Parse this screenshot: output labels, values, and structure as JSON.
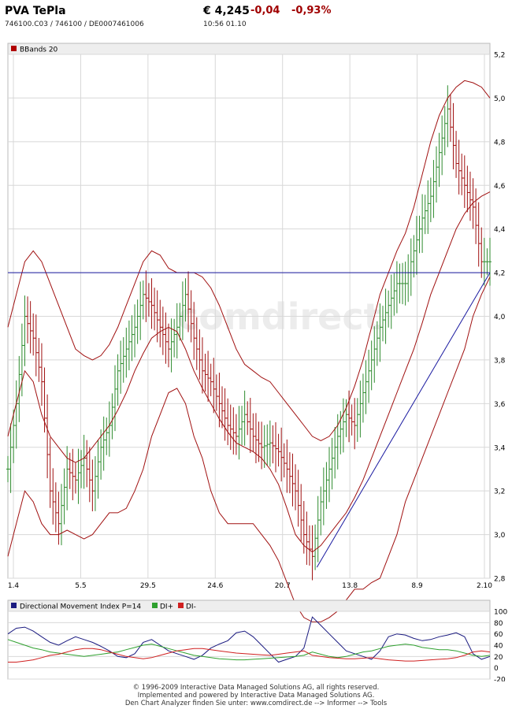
{
  "header": {
    "title": "PVA TePla",
    "ids": "746100.C03  /  746100  /  DE0007461006",
    "price": "€ 4,245",
    "change": "-0,04",
    "change_pct": "-0,93%",
    "time": "10:56   01.10"
  },
  "watermark": "comdirect",
  "colors": {
    "up_bar": "#2e8b2e",
    "down_bar": "#a01010",
    "bands": "#a01010",
    "trend": "#1a1aa0",
    "dmi": "#1a1a80",
    "di_plus": "#2ea02e",
    "di_minus": "#d02020",
    "grid": "#d8d8d8"
  },
  "chart_data": [
    {
      "type": "ohlc",
      "legend": "BBands 20",
      "x_tick_labels": [
        "1.4",
        "5.5",
        "29.5",
        "24.6",
        "20.7",
        "13.8",
        "8.9",
        "2.10"
      ],
      "y_ticks": [
        "2,8",
        "3,0",
        "3,2",
        "3,4",
        "3,6",
        "3,8",
        "4,0",
        "4,2",
        "4,4",
        "4,6",
        "4,8",
        "5,0",
        "5,2"
      ],
      "ylim": [
        2.8,
        5.2
      ],
      "horizontal_line": 4.2,
      "trend_line": {
        "from": [
          0.641,
          2.85
        ],
        "to": [
          1.0,
          4.2
        ]
      },
      "close": [
        3.3,
        3.6,
        4.0,
        3.9,
        3.7,
        3.2,
        3.05,
        3.3,
        3.25,
        3.35,
        3.2,
        3.4,
        3.5,
        3.75,
        3.85,
        3.95,
        4.1,
        4.05,
        3.95,
        3.85,
        3.95,
        4.1,
        3.9,
        3.75,
        3.7,
        3.6,
        3.5,
        3.45,
        3.55,
        3.45,
        3.4,
        3.42,
        3.38,
        3.3,
        3.2,
        3.0,
        2.9,
        3.15,
        3.3,
        3.45,
        3.55,
        3.5,
        3.65,
        3.8,
        3.95,
        4.05,
        4.15,
        4.15,
        4.3,
        4.45,
        4.55,
        4.75,
        4.95,
        4.7,
        4.6,
        4.5,
        4.25,
        4.25
      ],
      "bb_middle": [
        3.45,
        3.6,
        3.75,
        3.7,
        3.55,
        3.45,
        3.4,
        3.35,
        3.33,
        3.35,
        3.4,
        3.45,
        3.5,
        3.57,
        3.65,
        3.75,
        3.83,
        3.9,
        3.93,
        3.95,
        3.93,
        3.85,
        3.75,
        3.67,
        3.6,
        3.53,
        3.47,
        3.42,
        3.4,
        3.38,
        3.35,
        3.3,
        3.23,
        3.12,
        3.0,
        2.95,
        2.92,
        2.95,
        3.0,
        3.05,
        3.1,
        3.17,
        3.25,
        3.35,
        3.45,
        3.55,
        3.65,
        3.75,
        3.85,
        3.97,
        4.1,
        4.2,
        4.3,
        4.4,
        4.47,
        4.52,
        4.55,
        4.57
      ],
      "bb_upper": [
        3.95,
        4.1,
        4.25,
        4.3,
        4.25,
        4.15,
        4.05,
        3.95,
        3.85,
        3.82,
        3.8,
        3.82,
        3.87,
        3.95,
        4.05,
        4.15,
        4.25,
        4.3,
        4.28,
        4.22,
        4.2,
        4.2,
        4.2,
        4.18,
        4.13,
        4.05,
        3.95,
        3.85,
        3.78,
        3.75,
        3.72,
        3.7,
        3.65,
        3.6,
        3.55,
        3.5,
        3.45,
        3.43,
        3.45,
        3.5,
        3.58,
        3.68,
        3.8,
        3.95,
        4.1,
        4.2,
        4.3,
        4.38,
        4.5,
        4.65,
        4.8,
        4.92,
        5.0,
        5.05,
        5.08,
        5.07,
        5.05,
        5.0
      ],
      "bb_lower": [
        2.9,
        3.05,
        3.2,
        3.15,
        3.05,
        3.0,
        3.0,
        3.02,
        3.0,
        2.98,
        3.0,
        3.05,
        3.1,
        3.1,
        3.12,
        3.2,
        3.3,
        3.45,
        3.55,
        3.65,
        3.67,
        3.6,
        3.45,
        3.35,
        3.2,
        3.1,
        3.05,
        3.05,
        3.05,
        3.05,
        3.0,
        2.95,
        2.88,
        2.78,
        2.68,
        2.62,
        2.6,
        2.6,
        2.62,
        2.65,
        2.7,
        2.75,
        2.75,
        2.78,
        2.8,
        2.9,
        3.0,
        3.15,
        3.25,
        3.35,
        3.45,
        3.55,
        3.65,
        3.75,
        3.85,
        4.0,
        4.1,
        4.18
      ]
    },
    {
      "type": "line",
      "legend": [
        "Directional Movement Index P=14",
        "DI+",
        "DI-"
      ],
      "y_ticks": [
        "100",
        "80",
        "60",
        "40",
        "20",
        "0",
        "-20"
      ],
      "ylim": [
        -20,
        100
      ],
      "series": [
        {
          "name": "Directional Movement Index P=14",
          "values": [
            60,
            70,
            72,
            65,
            55,
            45,
            40,
            48,
            55,
            50,
            45,
            38,
            30,
            20,
            18,
            25,
            45,
            50,
            40,
            30,
            25,
            20,
            15,
            22,
            35,
            42,
            48,
            62,
            65,
            55,
            40,
            25,
            10,
            15,
            20,
            35,
            90,
            75,
            60,
            45,
            30,
            25,
            20,
            15,
            30,
            55,
            60,
            58,
            52,
            48,
            50,
            55,
            58,
            62,
            55,
            25,
            15,
            20
          ]
        },
        {
          "name": "DI+",
          "values": [
            50,
            45,
            40,
            35,
            32,
            28,
            26,
            24,
            22,
            20,
            22,
            24,
            26,
            28,
            32,
            36,
            40,
            42,
            38,
            34,
            30,
            26,
            22,
            20,
            18,
            16,
            15,
            14,
            14,
            15,
            16,
            17,
            18,
            19,
            20,
            22,
            28,
            24,
            20,
            18,
            20,
            24,
            28,
            30,
            34,
            38,
            40,
            42,
            40,
            36,
            34,
            32,
            32,
            30,
            26,
            22,
            20,
            22
          ]
        },
        {
          "name": "DI-",
          "values": [
            10,
            10,
            12,
            14,
            18,
            22,
            24,
            28,
            32,
            34,
            34,
            32,
            28,
            24,
            20,
            18,
            16,
            18,
            22,
            26,
            30,
            32,
            34,
            34,
            32,
            30,
            28,
            26,
            25,
            24,
            23,
            22,
            24,
            26,
            28,
            30,
            22,
            20,
            18,
            17,
            16,
            16,
            17,
            18,
            16,
            14,
            13,
            12,
            12,
            13,
            14,
            15,
            16,
            18,
            22,
            28,
            30,
            28
          ]
        }
      ]
    }
  ],
  "footer": [
    "© 1996-2009 Interactive Data Managed Solutions AG, all rights reserved.",
    "Implemented and powered by  Interactive Data Managed Solutions AG.",
    "Den Chart Analyzer finden Sie unter: www.comdirect.de --> Informer --> Tools"
  ]
}
